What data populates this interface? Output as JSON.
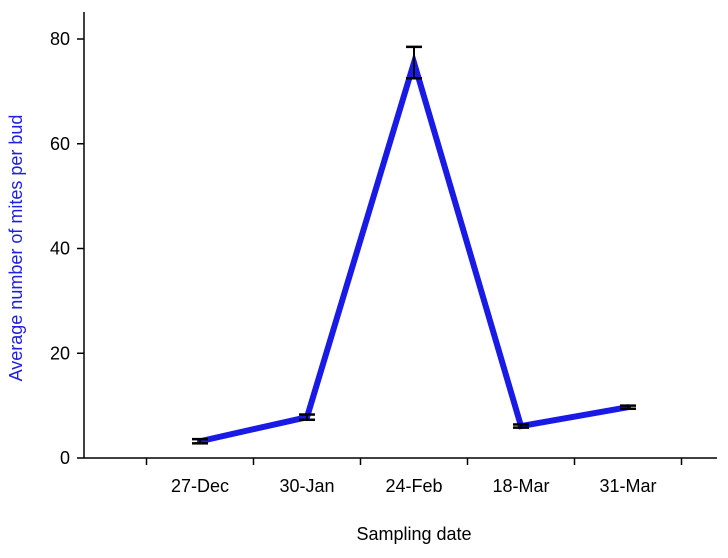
{
  "chart_data": {
    "type": "line",
    "title": "",
    "xlabel": "Sampling date",
    "ylabel": "Average number of mites per bud",
    "categories": [
      "27-Dec",
      "30-Jan",
      "24-Feb",
      "18-Mar",
      "31-Mar"
    ],
    "series": [
      {
        "values": [
          3.2,
          7.8,
          75.5,
          6.1,
          9.7
        ],
        "error": [
          0.4,
          0.5,
          3.0,
          0.3,
          0.3
        ]
      }
    ],
    "y_ticks": [
      "0",
      "20",
      "40",
      "60",
      "80"
    ],
    "ylim": [
      0,
      80
    ],
    "grid": false,
    "legend": "none",
    "colors": {
      "line": "#1a1ae6",
      "ylabel": "#2020e0",
      "axis": "#000000",
      "error_bar": "#000000"
    }
  }
}
